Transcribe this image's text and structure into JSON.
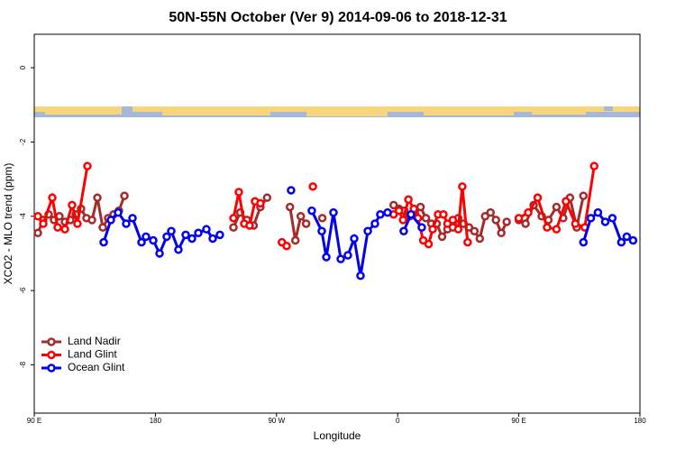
{
  "chart_data": {
    "type": "line",
    "title": "50N-55N October (Ver 9)   2014-09-06 to 2018-12-31",
    "xlabel": "Longitude",
    "ylabel": "XCO2 - MLO trend (ppm)",
    "xlim": [
      90,
      540
    ],
    "ylim": [
      -9.3,
      0.9
    ],
    "xticks": [
      {
        "value": 90,
        "label": "90 E"
      },
      180,
      {
        "value": 270,
        "label": "90 W"
      },
      {
        "value": 360,
        "label": "0"
      },
      {
        "value": 450,
        "label": "90 E"
      },
      {
        "value": 540,
        "label": "180"
      }
    ],
    "yticks": [
      0,
      -2,
      -4,
      -6,
      -8
    ],
    "legend": "bottom-left",
    "series": [
      {
        "name": "Land Nadir",
        "color": "#a52a2a",
        "x": [
          92.7,
          96.7,
          100.7,
          104.7,
          108.7,
          112.8,
          116.8,
          120.8,
          124.8,
          128.8,
          132.9,
          136.9,
          140.9,
          144.9,
          148.9,
          152.9,
          157,
          null,
          238,
          243,
          248,
          253,
          258,
          263,
          null,
          280,
          284,
          288,
          292,
          null,
          304,
          null,
          357,
          361,
          365,
          369,
          373,
          377,
          381,
          385,
          389,
          393,
          397,
          401,
          405,
          409,
          413,
          417,
          421,
          425,
          429,
          433,
          437,
          441,
          null,
          450,
          455,
          461,
          467,
          472,
          478,
          483,
          488,
          493,
          498
        ],
        "values": [
          -4.45,
          -4.1,
          -3.95,
          -4.1,
          -4.0,
          -4.15,
          -4.1,
          -3.95,
          -3.8,
          -4.05,
          -4.1,
          -3.5,
          -4.3,
          -4.05,
          -3.95,
          -3.85,
          -3.45,
          null,
          -4.3,
          -3.9,
          -4.1,
          -4.25,
          -3.75,
          -3.5,
          null,
          -3.75,
          -4.65,
          -4.0,
          -4.2,
          null,
          -4.05,
          null,
          -3.7,
          -3.8,
          -3.85,
          -4.0,
          -3.95,
          -3.75,
          -4.05,
          -4.2,
          -4.2,
          -4.55,
          -4.35,
          -4.3,
          -4.05,
          -4.2,
          -4.3,
          -4.4,
          -4.6,
          -4.0,
          -3.9,
          -4.1,
          -4.45,
          -4.15,
          null,
          -4.1,
          -4.2,
          -3.7,
          -4.0,
          -4.1,
          -3.75,
          -4.05,
          -3.5,
          -4.3,
          -3.45
        ]
      },
      {
        "name": "Land Glint",
        "color": "#ff0000",
        "x": [
          92.7,
          96.7,
          103.4,
          107.4,
          112.8,
          118.1,
          122.1,
          129.5,
          null,
          238,
          242,
          246,
          250,
          254,
          258,
          null,
          274,
          277.5,
          null,
          297,
          null,
          357,
          361,
          364,
          368,
          372,
          375,
          379,
          383,
          386,
          390,
          394,
          397,
          401,
          405,
          408,
          412,
          null,
          450,
          457,
          464,
          471,
          478,
          485,
          492,
          499,
          506
        ],
        "values": [
          -4.0,
          -4.2,
          -3.5,
          -4.3,
          -4.35,
          -3.7,
          -4.2,
          -2.65,
          null,
          -4.05,
          -3.35,
          -4.2,
          -4.25,
          -3.6,
          -3.65,
          null,
          -4.7,
          -4.8,
          null,
          -3.2,
          null,
          -3.95,
          -3.85,
          -4.1,
          -3.55,
          -3.8,
          -4.05,
          -4.65,
          -4.75,
          -4.35,
          -3.95,
          -3.95,
          -4.2,
          -4.1,
          -4.35,
          -3.2,
          -4.7,
          null,
          -4.05,
          -3.9,
          -3.5,
          -4.3,
          -4.35,
          -3.6,
          -4.2,
          -4.3,
          -2.65
        ]
      },
      {
        "name": "Ocean Glint",
        "color": "#0000ee",
        "x": [
          141.6,
          146.9,
          152.3,
          158.3,
          163,
          169.7,
          173,
          178.4,
          183.1,
          188.4,
          191.8,
          197.1,
          202.5,
          207.2,
          211.9,
          217.9,
          222.6,
          227.9,
          null,
          280.8,
          null,
          296.2,
          303.6,
          307,
          312.3,
          317.7,
          323,
          327.7,
          332.4,
          337.8,
          343.1,
          347.1,
          352.5,
          null,
          364.5,
          369.9,
          377.9,
          null,
          498,
          503.5,
          508.8,
          514.2,
          519.5,
          526.2,
          530.2,
          534.9
        ],
        "values": [
          -4.7,
          -4.1,
          -3.9,
          -4.2,
          -4.05,
          -4.7,
          -4.55,
          -4.65,
          -5.0,
          -4.55,
          -4.4,
          -4.9,
          -4.5,
          -4.6,
          -4.45,
          -4.35,
          -4.6,
          -4.5,
          null,
          -3.3,
          null,
          -3.85,
          -4.4,
          -5.1,
          -3.9,
          -5.15,
          -5.05,
          -4.6,
          -5.6,
          -4.4,
          -4.2,
          -3.95,
          -3.9,
          null,
          -4.4,
          -3.95,
          -4.3,
          null,
          -4.7,
          -4.05,
          -3.9,
          -4.15,
          -4.05,
          -4.7,
          -4.55,
          -4.65
        ]
      }
    ]
  }
}
